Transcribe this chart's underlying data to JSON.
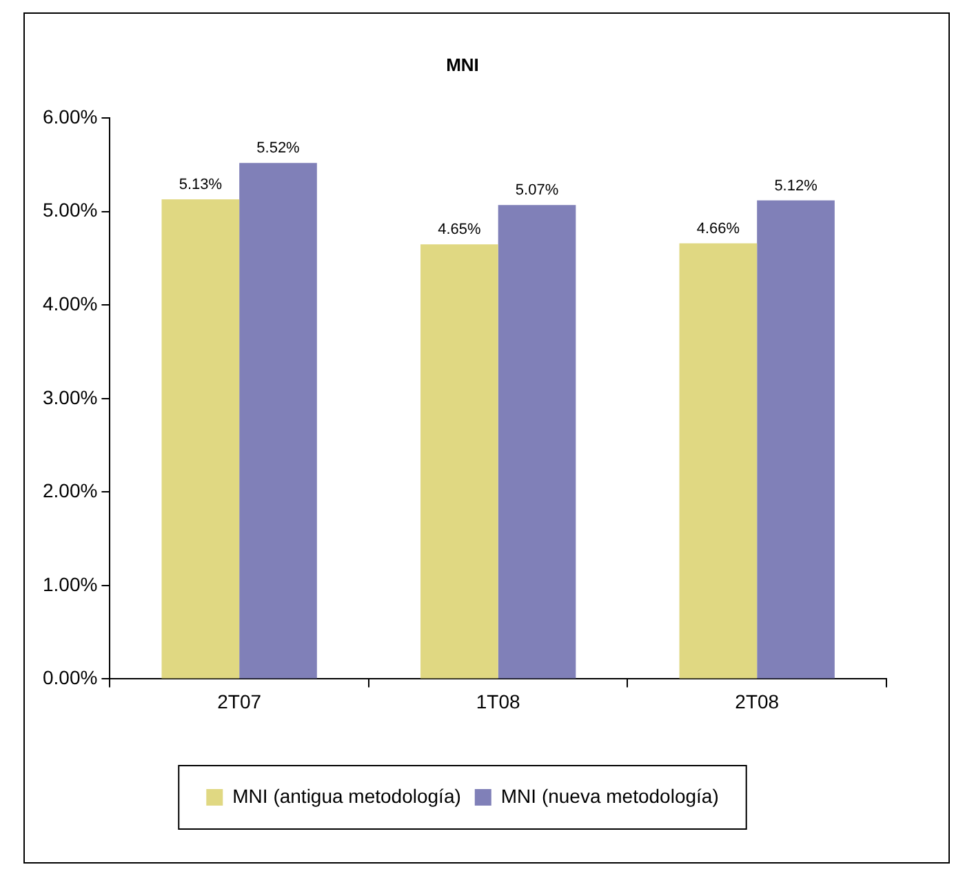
{
  "chart_data": {
    "type": "bar",
    "title": "MNI",
    "categories": [
      "2T07",
      "1T08",
      "2T08"
    ],
    "series": [
      {
        "name": "MNI (antigua metodología)",
        "color": "#e0d882",
        "values": [
          5.13,
          4.65,
          4.66
        ],
        "value_labels": [
          "5.13%",
          "4.65%",
          "4.66%"
        ]
      },
      {
        "name": "MNI (nueva metodología)",
        "color": "#8080b8",
        "values": [
          5.52,
          5.07,
          5.12
        ],
        "value_labels": [
          "5.52%",
          "5.07%",
          "5.12%"
        ]
      }
    ],
    "ylim": [
      0,
      6
    ],
    "yticks": [
      {
        "value": 0,
        "label": "0.00%"
      },
      {
        "value": 1,
        "label": "1.00%"
      },
      {
        "value": 2,
        "label": "2.00%"
      },
      {
        "value": 3,
        "label": "3.00%"
      },
      {
        "value": 4,
        "label": "4.00%"
      },
      {
        "value": 5,
        "label": "5.00%"
      },
      {
        "value": 6,
        "label": "6.00%"
      }
    ],
    "grid": false,
    "legend": "bottom"
  }
}
